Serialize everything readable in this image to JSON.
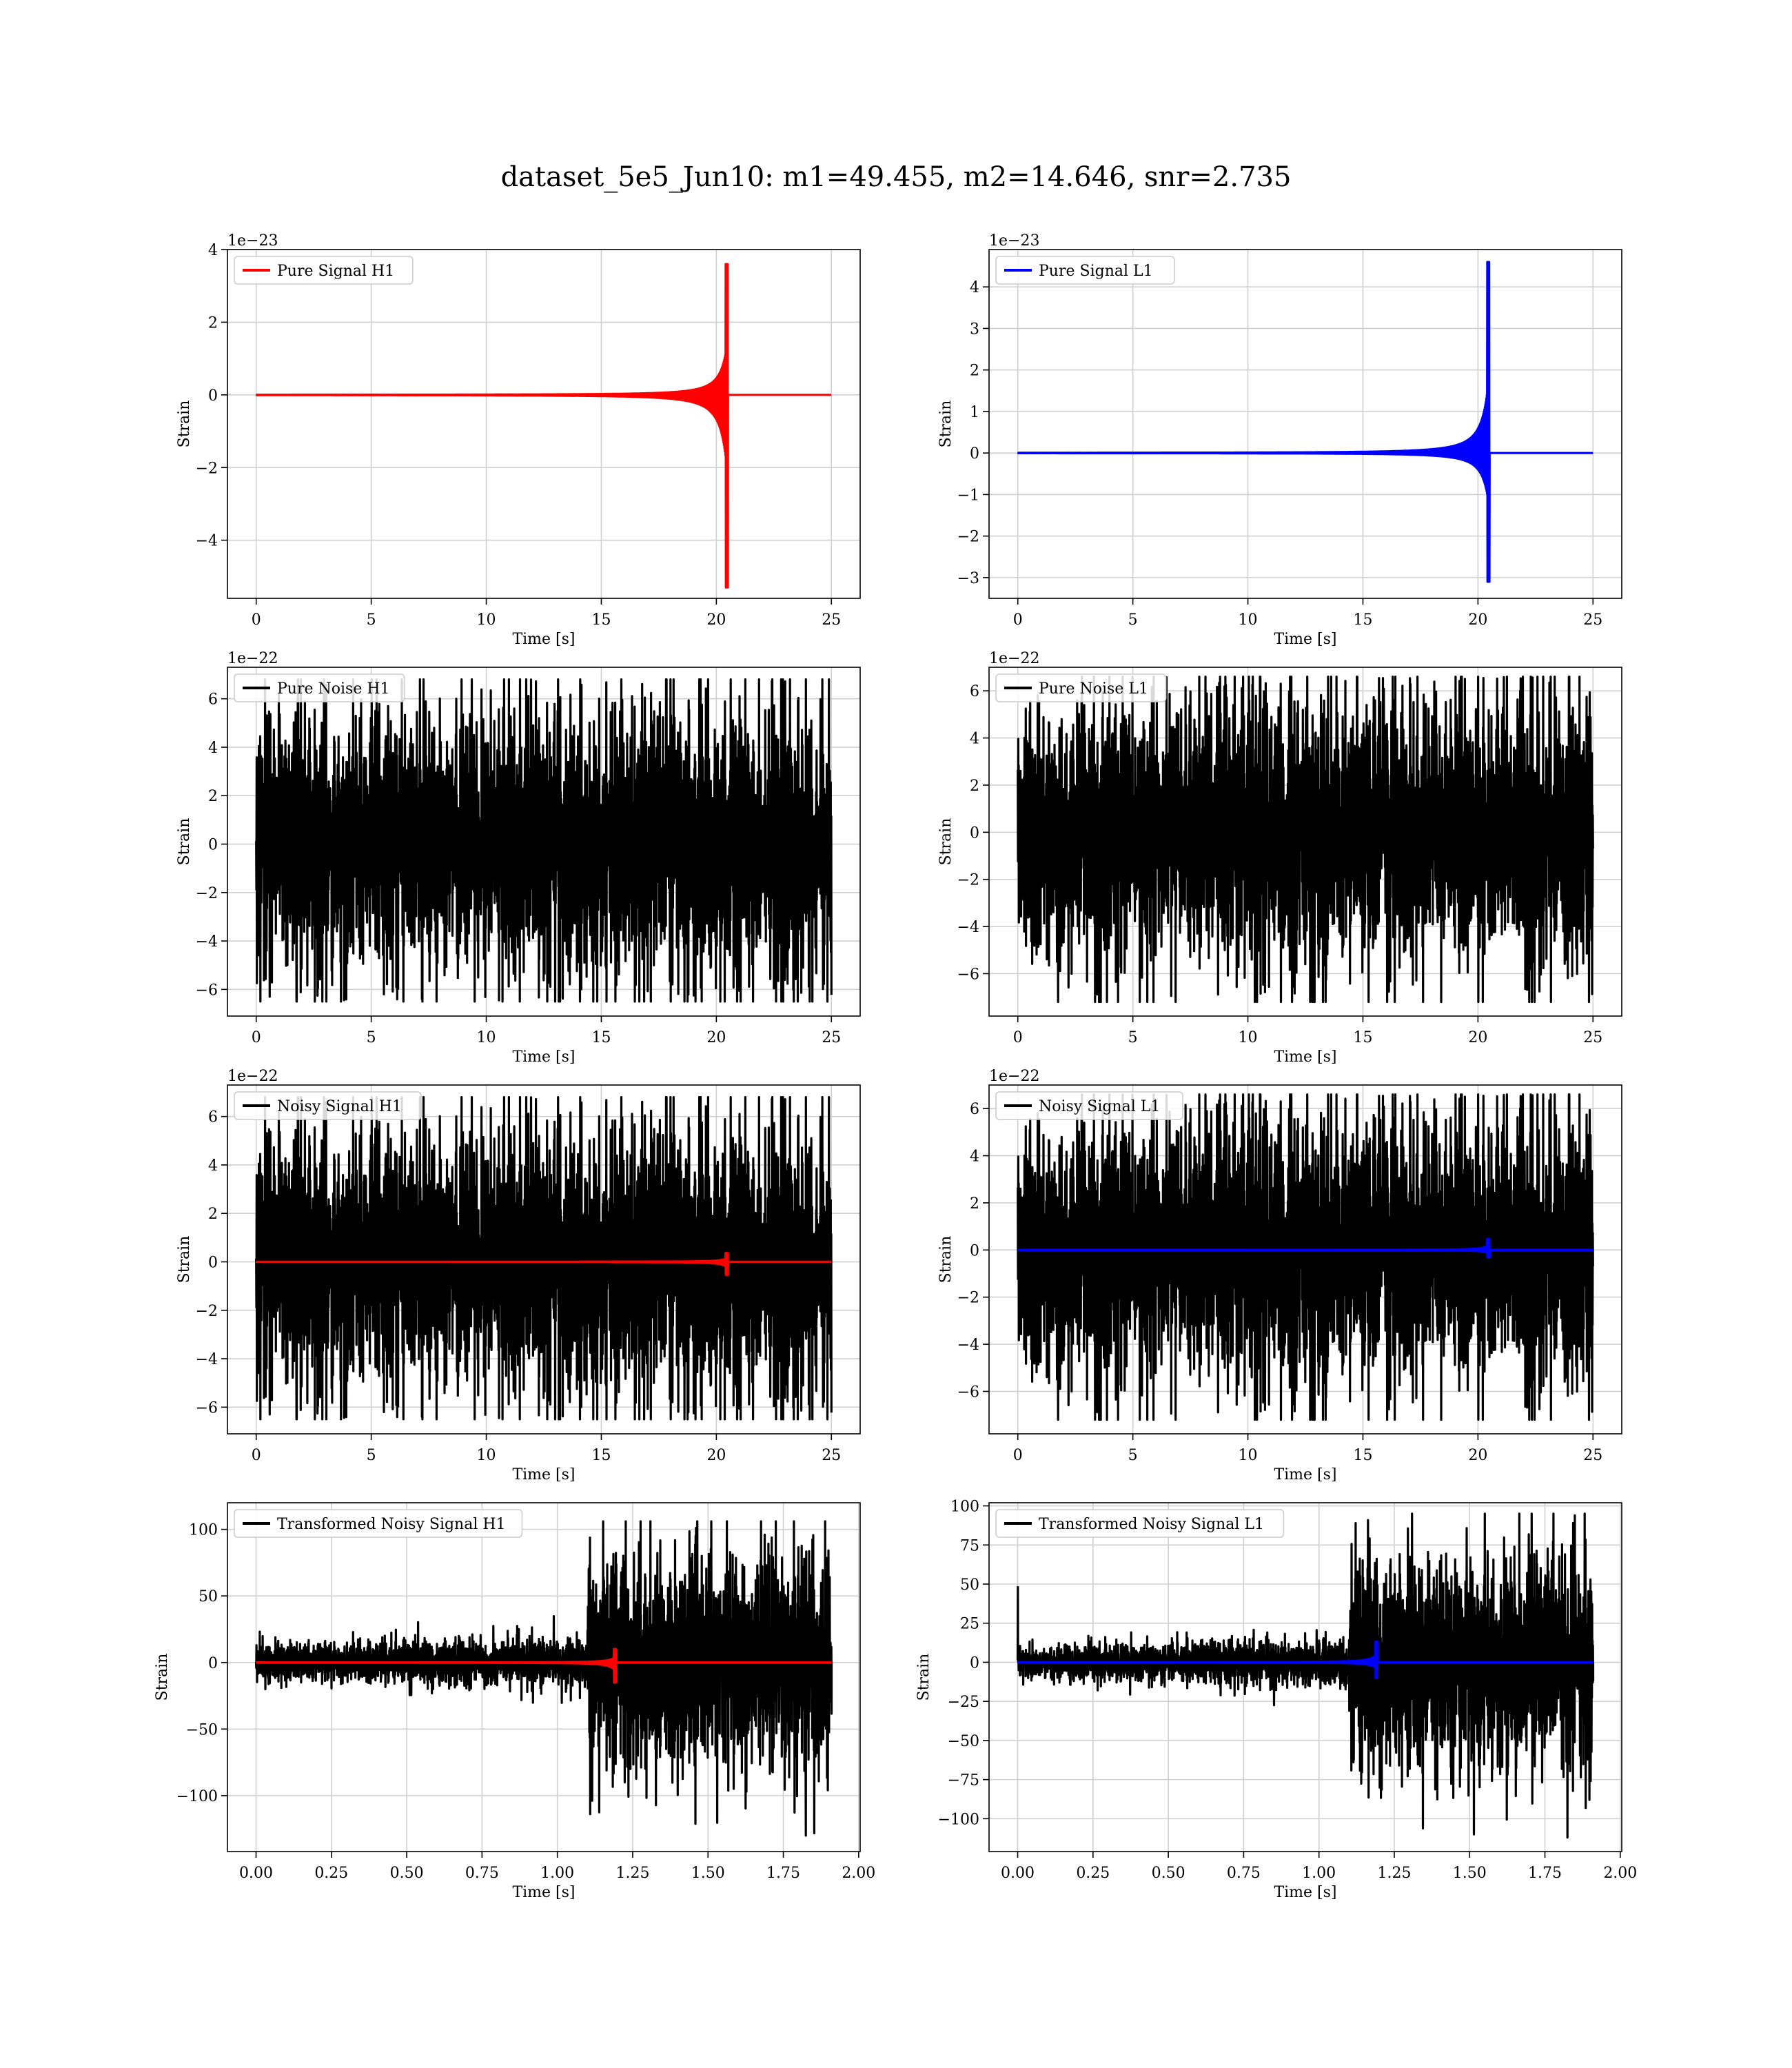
{
  "figure": {
    "title": "dataset_5e5_Jun10: m1=49.455, m2=14.646, snr=2.735"
  },
  "colors": {
    "h1_signal": "#ff0000",
    "l1_signal": "#0000ff",
    "noise": "#000000",
    "grid": "#d0d0d0"
  },
  "chart_data": [
    {
      "id": "pure-signal-h1",
      "type": "line",
      "xlabel": "Time [s]",
      "ylabel": "Strain",
      "offset_text": "1e−23",
      "xlim": [
        -1.25,
        26.25
      ],
      "ylim": [
        -5.6,
        4.0
      ],
      "xticks": [
        0,
        5,
        10,
        15,
        20,
        25
      ],
      "xtick_labels": [
        "0",
        "5",
        "10",
        "15",
        "20",
        "25"
      ],
      "yticks": [
        -4,
        -2,
        0,
        2,
        4
      ],
      "ytick_labels": [
        "−4",
        "−2",
        "0",
        "2",
        "4"
      ],
      "grid": true,
      "legend_position": "upper-left",
      "series": [
        {
          "name": "Pure Signal H1",
          "color": "#ff0000",
          "kind": "chirp",
          "x_range": [
            0,
            25
          ],
          "merger_time": 20.5,
          "peak_pos": 3.6,
          "peak_neg": -5.3
        }
      ]
    },
    {
      "id": "pure-signal-l1",
      "type": "line",
      "xlabel": "Time [s]",
      "ylabel": "Strain",
      "offset_text": "1e−23",
      "xlim": [
        -1.25,
        26.25
      ],
      "ylim": [
        -3.5,
        4.9
      ],
      "xticks": [
        0,
        5,
        10,
        15,
        20,
        25
      ],
      "xtick_labels": [
        "0",
        "5",
        "10",
        "15",
        "20",
        "25"
      ],
      "yticks": [
        -3,
        -2,
        -1,
        0,
        1,
        2,
        3,
        4
      ],
      "ytick_labels": [
        "−3",
        "−2",
        "−1",
        "0",
        "1",
        "2",
        "3",
        "4"
      ],
      "grid": true,
      "legend_position": "upper-left",
      "series": [
        {
          "name": "Pure Signal L1",
          "color": "#0000ff",
          "kind": "chirp",
          "x_range": [
            0,
            25
          ],
          "merger_time": 20.5,
          "peak_pos": 4.6,
          "peak_neg": -3.1
        }
      ]
    },
    {
      "id": "pure-noise-h1",
      "type": "line",
      "xlabel": "Time [s]",
      "ylabel": "Strain",
      "offset_text": "1e−22",
      "xlim": [
        -1.25,
        26.25
      ],
      "ylim": [
        -7.1,
        7.3
      ],
      "xticks": [
        0,
        5,
        10,
        15,
        20,
        25
      ],
      "xtick_labels": [
        "0",
        "5",
        "10",
        "15",
        "20",
        "25"
      ],
      "yticks": [
        -6,
        -4,
        -2,
        0,
        2,
        4,
        6
      ],
      "ytick_labels": [
        "−6",
        "−4",
        "−2",
        "0",
        "2",
        "4",
        "6"
      ],
      "grid": true,
      "legend_position": "upper-left",
      "series": [
        {
          "name": "Pure Noise H1",
          "color": "#000000",
          "kind": "noise",
          "x_range": [
            0,
            25
          ],
          "amplitude": 4.0,
          "max": 6.8,
          "min": -6.5
        }
      ]
    },
    {
      "id": "pure-noise-l1",
      "type": "line",
      "xlabel": "Time [s]",
      "ylabel": "Strain",
      "offset_text": "1e−22",
      "xlim": [
        -1.25,
        26.25
      ],
      "ylim": [
        -7.8,
        7.0
      ],
      "xticks": [
        0,
        5,
        10,
        15,
        20,
        25
      ],
      "xtick_labels": [
        "0",
        "5",
        "10",
        "15",
        "20",
        "25"
      ],
      "yticks": [
        -6,
        -4,
        -2,
        0,
        2,
        4,
        6
      ],
      "ytick_labels": [
        "−6",
        "−4",
        "−2",
        "0",
        "2",
        "4",
        "6"
      ],
      "grid": true,
      "legend_position": "upper-left",
      "series": [
        {
          "name": "Pure Noise L1",
          "color": "#000000",
          "kind": "noise",
          "x_range": [
            0,
            25
          ],
          "amplitude": 4.0,
          "max": 6.6,
          "min": -7.2
        }
      ]
    },
    {
      "id": "noisy-signal-h1",
      "type": "line",
      "xlabel": "Time [s]",
      "ylabel": "Strain",
      "offset_text": "1e−22",
      "xlim": [
        -1.25,
        26.25
      ],
      "ylim": [
        -7.1,
        7.3
      ],
      "xticks": [
        0,
        5,
        10,
        15,
        20,
        25
      ],
      "xtick_labels": [
        "0",
        "5",
        "10",
        "15",
        "20",
        "25"
      ],
      "yticks": [
        -6,
        -4,
        -2,
        0,
        2,
        4,
        6
      ],
      "ytick_labels": [
        "−6",
        "−4",
        "−2",
        "0",
        "2",
        "4",
        "6"
      ],
      "grid": true,
      "legend_position": "upper-left",
      "series": [
        {
          "name": "Noisy Signal H1",
          "color": "#000000",
          "kind": "noise",
          "x_range": [
            0,
            25
          ],
          "amplitude": 4.0,
          "max": 6.8,
          "min": -6.5
        },
        {
          "color": "#ff0000",
          "kind": "chirp",
          "x_range": [
            0,
            25
          ],
          "merger_time": 20.5,
          "peak_pos": 0.36,
          "peak_neg": -0.53
        }
      ]
    },
    {
      "id": "noisy-signal-l1",
      "type": "line",
      "xlabel": "Time [s]",
      "ylabel": "Strain",
      "offset_text": "1e−22",
      "xlim": [
        -1.25,
        26.25
      ],
      "ylim": [
        -7.8,
        7.0
      ],
      "xticks": [
        0,
        5,
        10,
        15,
        20,
        25
      ],
      "xtick_labels": [
        "0",
        "5",
        "10",
        "15",
        "20",
        "25"
      ],
      "yticks": [
        -6,
        -4,
        -2,
        0,
        2,
        4,
        6
      ],
      "ytick_labels": [
        "−6",
        "−4",
        "−2",
        "0",
        "2",
        "4",
        "6"
      ],
      "grid": true,
      "legend_position": "upper-left",
      "series": [
        {
          "name": "Noisy Signal L1",
          "color": "#000000",
          "kind": "noise",
          "x_range": [
            0,
            25
          ],
          "amplitude": 4.0,
          "max": 6.6,
          "min": -7.2
        },
        {
          "color": "#0000ff",
          "kind": "chirp",
          "x_range": [
            0,
            25
          ],
          "merger_time": 20.5,
          "peak_pos": 0.46,
          "peak_neg": -0.31
        }
      ]
    },
    {
      "id": "transformed-noisy-signal-h1",
      "type": "line",
      "xlabel": "Time [s]",
      "ylabel": "Strain",
      "offset_text": "",
      "xlim": [
        -0.095,
        2.005
      ],
      "ylim": [
        -142,
        120
      ],
      "xticks": [
        0,
        0.25,
        0.5,
        0.75,
        1.0,
        1.25,
        1.5,
        1.75,
        2.0
      ],
      "xtick_labels": [
        "0.00",
        "0.25",
        "0.50",
        "0.75",
        "1.00",
        "1.25",
        "1.50",
        "1.75",
        "2.00"
      ],
      "yticks": [
        -100,
        -50,
        0,
        50,
        100
      ],
      "ytick_labels": [
        "−100",
        "−50",
        "0",
        "50",
        "100"
      ],
      "grid": true,
      "legend_position": "upper-left",
      "series": [
        {
          "name": "Transformed Noisy Signal H1",
          "color": "#000000",
          "kind": "transformed",
          "x_range": [
            0,
            1.91
          ],
          "jump_time": 1.1,
          "low_amp": 9,
          "high_amp": 55,
          "max": 106,
          "min": -130
        },
        {
          "color": "#ff0000",
          "kind": "chirp",
          "x_range": [
            0,
            1.91
          ],
          "merger_time": 1.195,
          "peak_pos": 10,
          "peak_neg": -15
        }
      ]
    },
    {
      "id": "transformed-noisy-signal-l1",
      "type": "line",
      "xlabel": "Time [s]",
      "ylabel": "Strain",
      "offset_text": "",
      "xlim": [
        -0.095,
        2.005
      ],
      "ylim": [
        -121,
        102
      ],
      "xticks": [
        0,
        0.25,
        0.5,
        0.75,
        1.0,
        1.25,
        1.5,
        1.75,
        2.0
      ],
      "xtick_labels": [
        "0.00",
        "0.25",
        "0.50",
        "0.75",
        "1.00",
        "1.25",
        "1.50",
        "1.75",
        "2.00"
      ],
      "yticks": [
        -100,
        -75,
        -50,
        -25,
        0,
        25,
        50,
        75,
        100
      ],
      "ytick_labels": [
        "−100",
        "−75",
        "−50",
        "−25",
        "0",
        "25",
        "50",
        "75",
        "100"
      ],
      "grid": true,
      "legend_position": "upper-left",
      "series": [
        {
          "name": "Transformed Noisy Signal L1",
          "color": "#000000",
          "kind": "transformed",
          "x_range": [
            0,
            1.91
          ],
          "jump_time": 1.1,
          "low_amp": 7,
          "high_amp": 45,
          "max": 95,
          "min": -112,
          "spike_start": 48
        },
        {
          "color": "#0000ff",
          "kind": "chirp",
          "x_range": [
            0,
            1.91
          ],
          "merger_time": 1.195,
          "peak_pos": 13,
          "peak_neg": -10
        }
      ]
    }
  ]
}
